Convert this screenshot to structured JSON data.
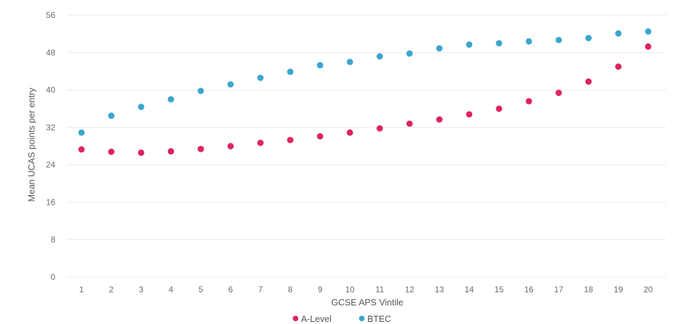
{
  "chart_data": {
    "type": "scatter",
    "title": "",
    "xlabel": "GCSE APS Vintile",
    "ylabel": "Mean UCAS points per entry",
    "x": [
      1,
      2,
      3,
      4,
      5,
      6,
      7,
      8,
      9,
      10,
      11,
      12,
      13,
      14,
      15,
      16,
      17,
      18,
      19,
      20
    ],
    "ylim": [
      0,
      56
    ],
    "yticks": [
      0,
      8,
      16,
      24,
      32,
      40,
      48,
      56
    ],
    "grid": true,
    "legend_position": "bottom-center",
    "series": [
      {
        "name": "A-Level",
        "color": "#e0245e",
        "values": [
          27.3,
          26.8,
          26.6,
          26.9,
          27.4,
          28.0,
          28.7,
          29.3,
          30.1,
          30.9,
          31.8,
          32.8,
          33.7,
          34.8,
          36.0,
          37.6,
          39.4,
          41.8,
          45.0,
          49.3
        ]
      },
      {
        "name": "BTEC",
        "color": "#3aa6d0",
        "values": [
          30.9,
          34.5,
          36.4,
          38.0,
          39.8,
          41.2,
          42.6,
          43.9,
          45.3,
          46.0,
          47.2,
          47.8,
          48.9,
          49.7,
          50.0,
          50.4,
          50.7,
          51.1,
          52.1,
          52.5
        ]
      }
    ]
  }
}
